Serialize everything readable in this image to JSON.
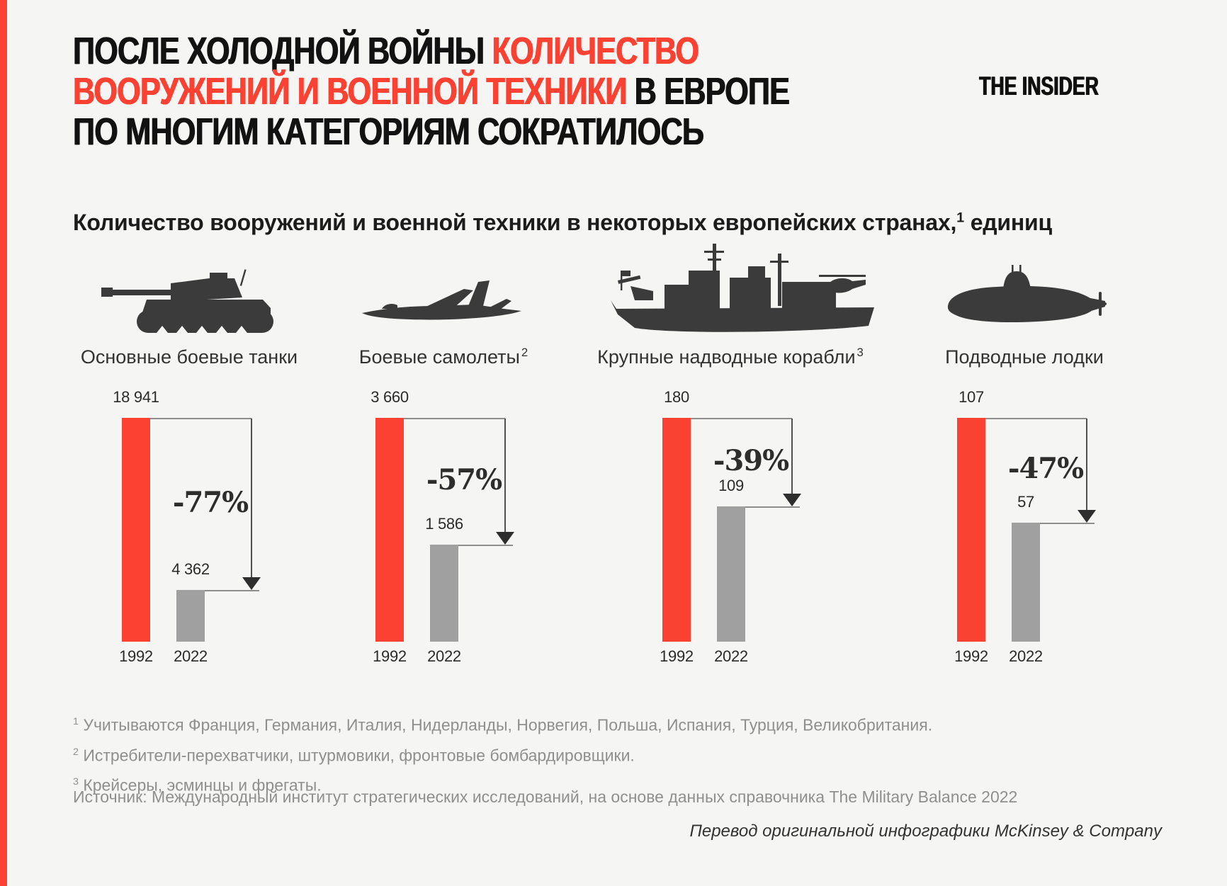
{
  "page": {
    "bg": "#f5f5f4",
    "accent": "#fa4132",
    "bar_gray": "#a0a0a0",
    "icon_color": "#3b3b3b",
    "footnote_gray": "#8f8f8f"
  },
  "header": {
    "logo": "THE INSIDER",
    "title_lines": [
      {
        "black": "ПОСЛЕ ХОЛОДНОЙ ВОЙНЫ ",
        "red": "КОЛИЧЕСТВО"
      },
      {
        "red": "ВООРУЖЕНИЙ И ВОЕННОЙ ТЕХНИКИ",
        "black": " В ЕВРОПЕ"
      },
      {
        "black": "ПО МНОГИМ КАТЕГОРИЯМ СОКРАТИЛОСЬ",
        "red": ""
      }
    ]
  },
  "subtitle": {
    "prefix": "Количество вооружений и военной техники в некоторых европейских странах,",
    "ref": "1",
    "suffix": " единиц"
  },
  "chart_data": {
    "type": "bar",
    "categories": [
      "Основные боевые танки",
      "Боевые самолеты",
      "Крупные надводные корабли",
      "Подводные лодки"
    ],
    "series": [
      {
        "name": "1992",
        "color": "#fa4132",
        "values": [
          18941,
          3660,
          180,
          107
        ]
      },
      {
        "name": "2022",
        "color": "#a0a0a0",
        "values": [
          4362,
          1586,
          109,
          57
        ]
      }
    ],
    "change_labels": [
      "-77%",
      "-57%",
      "-39%",
      "-47%"
    ],
    "unit": "единиц",
    "grid": false,
    "legend_position": "none"
  },
  "panels": [
    {
      "label": "Основные боевые танки",
      "ref": "",
      "icon": "tank-icon",
      "value_1992": "18 941",
      "value_2022": "4 362",
      "change": "-77%",
      "year_left": "1992",
      "year_right": "2022"
    },
    {
      "label": "Боевые самолеты",
      "ref": "2",
      "icon": "fighter-jet-icon",
      "value_1992": "3 660",
      "value_2022": "1 586",
      "change": "-57%",
      "year_left": "1992",
      "year_right": "2022"
    },
    {
      "label": "Крупные надводные корабли",
      "ref": "3",
      "icon": "warship-icon",
      "value_1992": "180",
      "value_2022": "109",
      "change": "-39%",
      "year_left": "1992",
      "year_right": "2022"
    },
    {
      "label": "Подводные лодки",
      "ref": "",
      "icon": "submarine-icon",
      "value_1992": "107",
      "value_2022": "57",
      "change": "-47%",
      "year_left": "1992",
      "year_right": "2022"
    }
  ],
  "footnotes": [
    {
      "ref": "1",
      "text": "Учитываются Франция, Германия, Италия, Нидерланды, Норвегия, Польша, Испания, Турция, Великобритания."
    },
    {
      "ref": "2",
      "text": "Истребители-перехватчики, штурмовики, фронтовые бомбардировщики."
    },
    {
      "ref": "3",
      "text": "Крейсеры, эсминцы и фрегаты."
    }
  ],
  "source": "Источник: Международный институт стратегических исследований, на основе данных справочника The Military Balance 2022",
  "credit": "Перевод оригинальной инфографики McKinsey & Company"
}
